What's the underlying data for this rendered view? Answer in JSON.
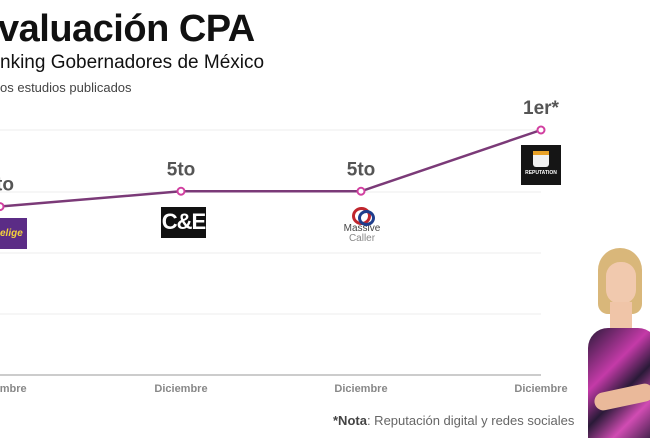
{
  "header": {
    "title": "valuación CPA",
    "subtitle": "nking Gobernadores de México",
    "caption": "os estudios publicados"
  },
  "chart_data": {
    "type": "line",
    "categories": [
      "Diciembre",
      "Diciembre",
      "Diciembre",
      "Diciembre"
    ],
    "values": [
      6,
      5,
      5,
      1
    ],
    "point_labels": [
      "to",
      "5to",
      "5to",
      "1er*"
    ],
    "sources": [
      "Enlige",
      "C&E",
      "Massive Caller",
      "Reputation"
    ],
    "ylim": [
      1,
      17
    ],
    "y_inverted": true,
    "grid": true,
    "line_color": "#7b3a78",
    "marker_color": "#d13fa0"
  },
  "logos": {
    "enlige": "elige",
    "ce": "C&E",
    "massive_line1": "Massive",
    "massive_line2": "Caller",
    "reputation": "REPUTATION"
  },
  "footnote": {
    "label": "*Nota",
    "text": ": Reputación digital y redes sociales"
  }
}
